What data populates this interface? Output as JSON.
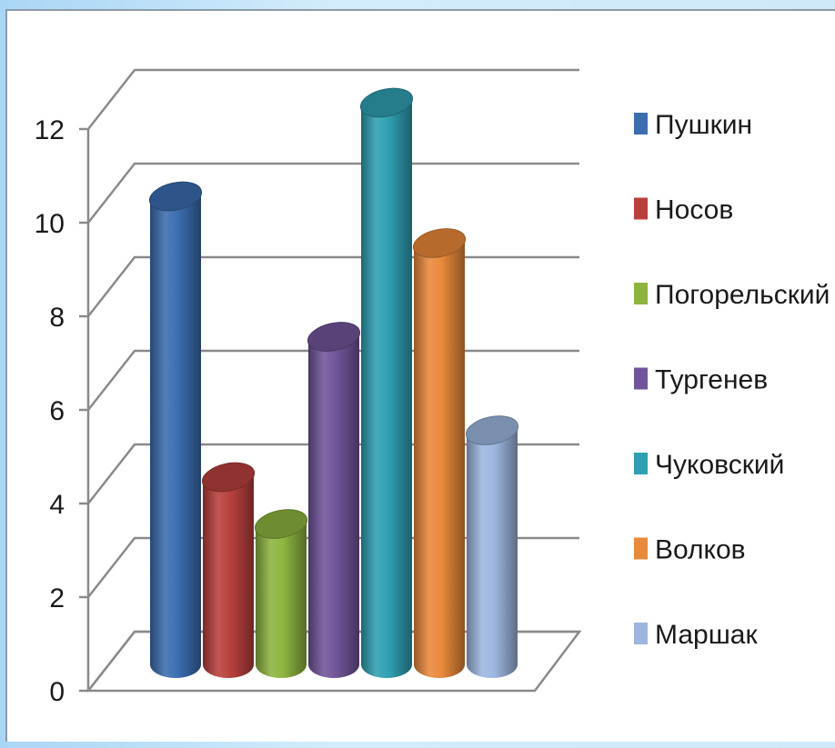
{
  "chart_data": {
    "type": "bar",
    "style": "3d-cylinder",
    "title": "",
    "xlabel": "",
    "ylabel": "",
    "ylim": [
      0,
      12
    ],
    "yticks": [
      0,
      2,
      4,
      6,
      8,
      10,
      12
    ],
    "grid": true,
    "legend_position": "right",
    "series": [
      {
        "name": "Пушкин",
        "value": 10,
        "color": "#3b6db0"
      },
      {
        "name": "Носов",
        "value": 4,
        "color": "#b8403d"
      },
      {
        "name": "Погорельский",
        "value": 3,
        "color": "#8db43f"
      },
      {
        "name": "Тургенев",
        "value": 7,
        "color": "#71559a"
      },
      {
        "name": "Чуковский",
        "value": 12,
        "color": "#2f9fb2"
      },
      {
        "name": "Волков",
        "value": 9,
        "color": "#e9893a"
      },
      {
        "name": "Маршак",
        "value": 5,
        "color": "#9cb6df"
      }
    ]
  }
}
